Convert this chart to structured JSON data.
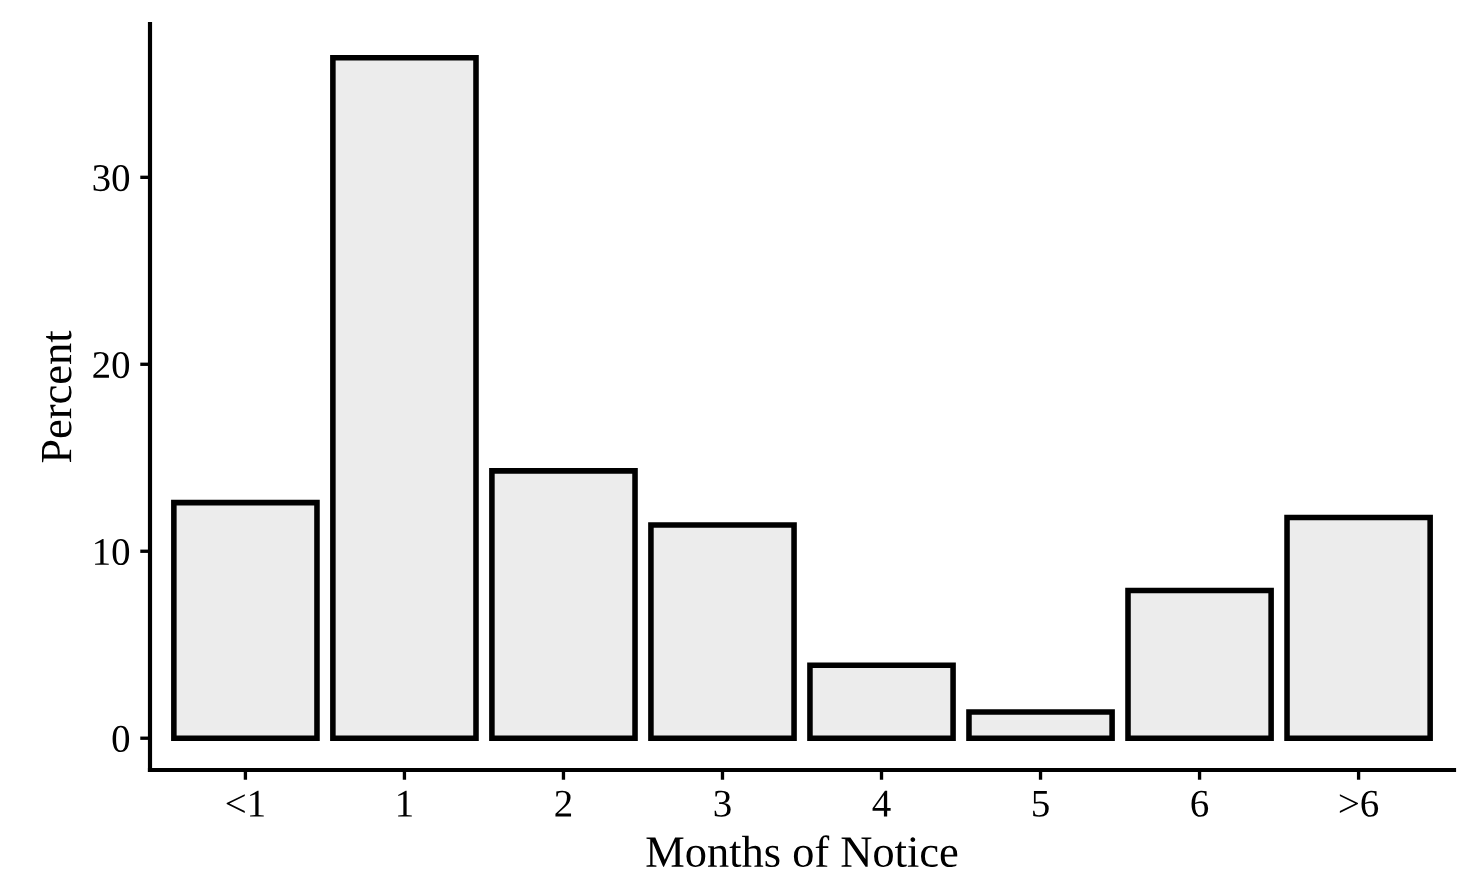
{
  "chart_data": {
    "type": "bar",
    "xlabel": "Months of Notice",
    "ylabel": "Percent",
    "categories": [
      "<1",
      "1",
      "2",
      "3",
      "4",
      "5",
      "6",
      ">6"
    ],
    "values": [
      12.6,
      36.4,
      14.3,
      11.4,
      3.9,
      1.4,
      7.9,
      11.8
    ],
    "color": "#ececec",
    "ylim": [
      -1.7,
      38.2
    ],
    "yticks": [
      0,
      10,
      20,
      30
    ],
    "grid": false
  }
}
